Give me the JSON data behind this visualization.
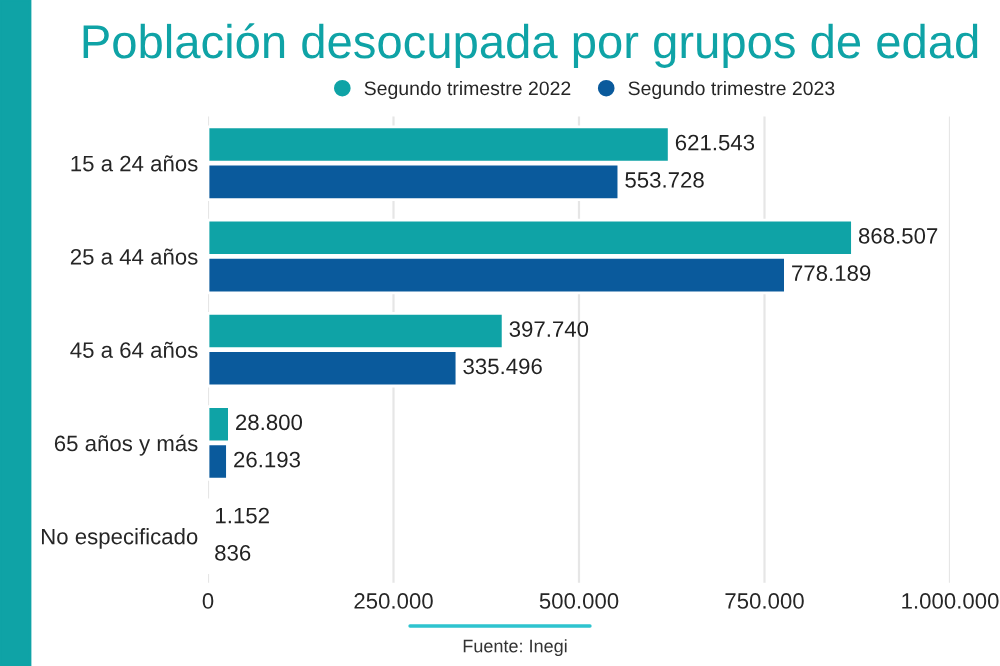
{
  "chart_data": {
    "type": "bar",
    "orientation": "horizontal",
    "title": "Población desocupada por grupos de edad",
    "categories": [
      "15 a 24 años",
      "25 a 44 años",
      "45 a 64 años",
      "65 años y más",
      "No especificado"
    ],
    "series": [
      {
        "name": "Segundo trimestre 2022",
        "color": "#0fa3a6",
        "values": [
          621543,
          868507,
          397740,
          28800,
          1152
        ],
        "value_labels": [
          "621.543",
          "868.507",
          "397.740",
          "28.800",
          "1.152"
        ]
      },
      {
        "name": "Segundo trimestre 2023",
        "color": "#0a5a9c",
        "values": [
          553728,
          778189,
          335496,
          26193,
          836
        ],
        "value_labels": [
          "553.728",
          "778.189",
          "335.496",
          "26.193",
          "836"
        ]
      }
    ],
    "xlim": [
      0,
      1000000
    ],
    "xticks": [
      0,
      {
        "value": 250000,
        "label": "250.000"
      },
      {
        "value": 500000,
        "label": "500.000"
      },
      {
        "value": 750000,
        "label": "750.000"
      },
      {
        "value": 1000000,
        "label": "1.000.000"
      }
    ],
    "grid": "x",
    "legend": "top",
    "annotations": [
      "Fuente: Inegi"
    ]
  }
}
